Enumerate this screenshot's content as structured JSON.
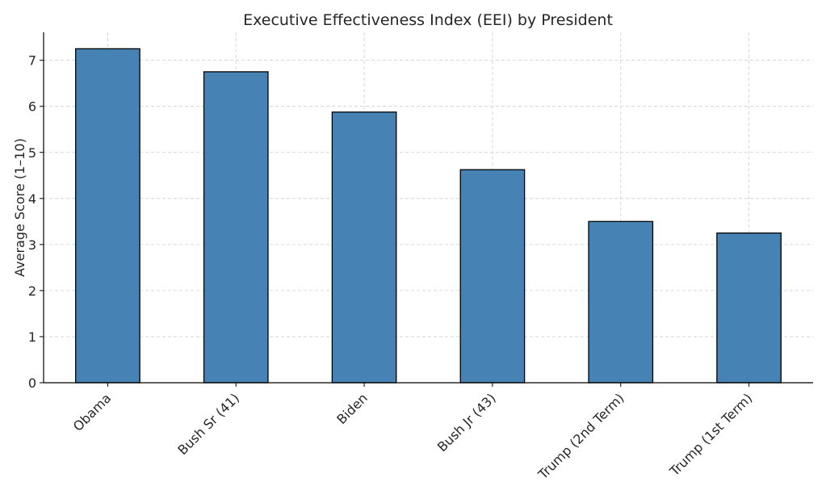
{
  "chart_data": {
    "type": "bar",
    "title": "Executive Effectiveness Index (EEI) by President",
    "xlabel": "",
    "ylabel": "Average Score (1–10)",
    "categories": [
      "Obama",
      "Bush Sr (41)",
      "Biden",
      "Bush Jr (43)",
      "Trump (2nd Term)",
      "Trump (1st Term)"
    ],
    "values": [
      7.25,
      6.75,
      5.875,
      4.625,
      3.5,
      3.25
    ],
    "ylim": [
      0,
      7.6
    ],
    "yticks": [
      0,
      1,
      2,
      3,
      4,
      5,
      6,
      7
    ],
    "grid": true,
    "bar_color": "#4682b4",
    "edge_color": "#000000"
  }
}
